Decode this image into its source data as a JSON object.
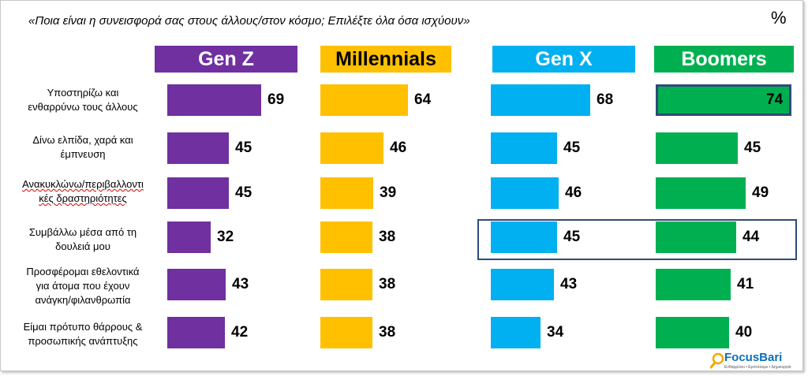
{
  "title": "«Ποια είναι η συνεισφορά σας στους άλλους/στον κόσμο; Επιλέξτε όλα όσα ισχύουν»",
  "unit": "%",
  "logo": {
    "name": "FocusBari",
    "tagline": "Ενθαρρύνει • Εμπνέουμε • Δημιουργία"
  },
  "colors": {
    "gen_z": "#7030a0",
    "millennials": "#ffc000",
    "gen_x": "#00b0f0",
    "boomers": "#00b050",
    "highlight_border": "#2f4a7a"
  },
  "chart_data": {
    "type": "bar",
    "orientation": "horizontal",
    "categories": [
      "Υποστηρίζω και ενθαρρύνω τους άλλους",
      "Δίνω ελπίδα, χαρά και έμπνευση",
      "Ανακυκλώνω/περιβαλλοντικές δραστηριότητες",
      "Συμβάλλω μέσα από τη δουλειά μου",
      "Προσφέρομαι εθελοντικά για άτομα που έχουν ανάγκη/φιλανθρωπία",
      "Είμαι πρότυπο θάρρους & προσωπικής ανάπτυξης"
    ],
    "category_lines": [
      [
        "Υποστηρίζω και",
        "ενθαρρύνω τους άλλους"
      ],
      [
        "Δίνω ελπίδα, χαρά και",
        "έμπνευση"
      ],
      [
        "Ανακυκλώνω/περιβαλλοντι",
        "κές δραστηριότητες"
      ],
      [
        "Συμβάλλω μέσα από τη",
        "δουλειά μου"
      ],
      [
        "Προσφέρομαι εθελοντικά",
        "για άτομα που έχουν",
        "ανάγκη/φιλανθρωπία"
      ],
      [
        "Είμαι πρότυπο θάρρους &",
        "προσωπικής ανάπτυξης"
      ]
    ],
    "series": [
      {
        "name": "Gen Z",
        "values": [
          69,
          45,
          45,
          32,
          43,
          42
        ]
      },
      {
        "name": "Millennials",
        "values": [
          64,
          46,
          39,
          38,
          38,
          38
        ]
      },
      {
        "name": "Gen X",
        "values": [
          68,
          45,
          46,
          45,
          43,
          34
        ]
      },
      {
        "name": "Boomers",
        "values": [
          74,
          45,
          49,
          44,
          41,
          40
        ]
      }
    ],
    "highlights": [
      {
        "series": "Boomers",
        "category": "Υποστηρίζω και ενθαρρύνω τους άλλους"
      },
      {
        "series": [
          "Gen X",
          "Boomers"
        ],
        "category": "Συμβάλλω μέσα από τη δουλειά μου"
      }
    ]
  }
}
